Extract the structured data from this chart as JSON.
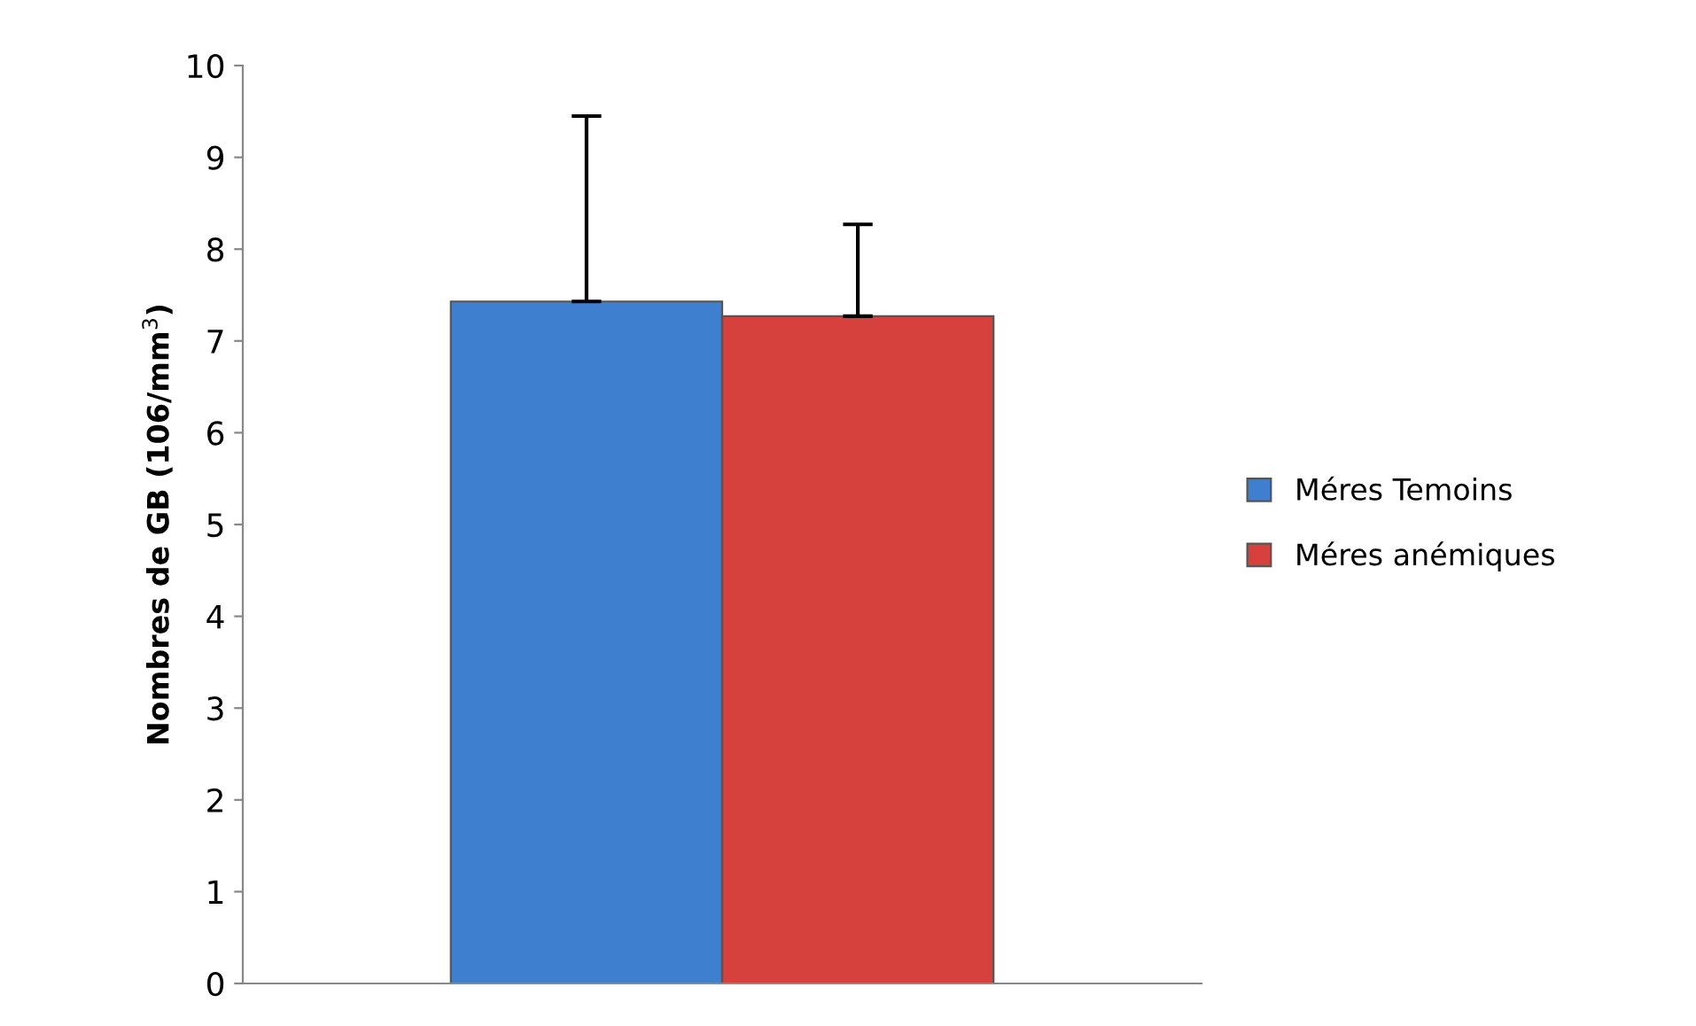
{
  "chart_data": {
    "type": "bar",
    "ylabel": "Nombres de GB (106/mm$^{3}$)",
    "categories": [
      null
    ],
    "series": [
      {
        "name": "Méres Temoins",
        "color": "#3f7fd0",
        "values": [
          7.43
        ],
        "errors": [
          [
            7.43,
            9.45
          ]
        ]
      },
      {
        "name": "Méres anémiques",
        "color": "#d6403d",
        "values": [
          7.27
        ],
        "errors": [
          [
            7.27,
            8.27
          ]
        ]
      }
    ],
    "ylim": [
      0,
      10
    ],
    "yticks": [
      0,
      1,
      2,
      3,
      4,
      5,
      6,
      7,
      8,
      9,
      10
    ],
    "grid": false,
    "legend": "right"
  }
}
